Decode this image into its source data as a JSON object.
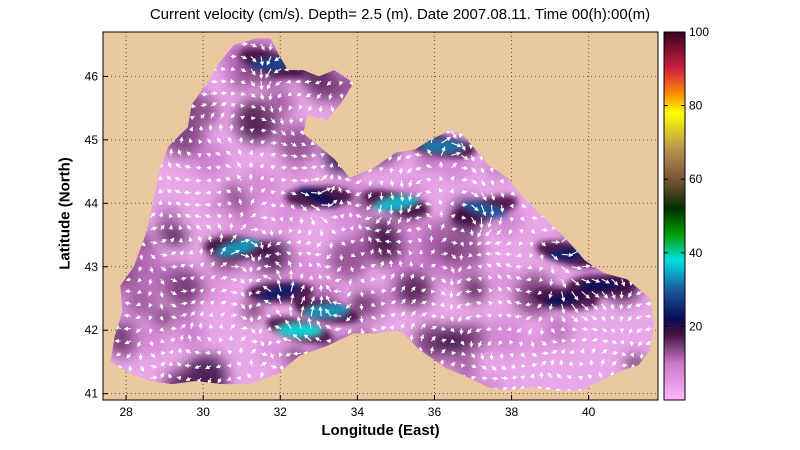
{
  "title": "Current velocity (cm/s). Depth=  2.5 (m). Date 2007.08.11. Time 00(h):00(m)",
  "xlabel": "Longitude (East)",
  "ylabel": "Latitude (North)",
  "colors": {
    "land": "#e9c8a0",
    "sea_low": "#e8a7e8",
    "sea_mid": "#8c5a8c",
    "sea_dark": "#3a0e3a",
    "jet_cyan": "#2fc4d4",
    "jet_blue": "#1a3a8a",
    "arrow": "#ffffff",
    "grid_dot": "#555555"
  },
  "chart_data": {
    "type": "heatmap",
    "quantity": "Current velocity (cm/s)",
    "depth_m": 2.5,
    "date": "2007.08.11",
    "time": "00(h):00(m)",
    "xlim": [
      27.4,
      41.8
    ],
    "ylim": [
      40.9,
      46.7
    ],
    "x_ticks": [
      28,
      30,
      32,
      34,
      36,
      38,
      40
    ],
    "y_ticks": [
      41,
      42,
      43,
      44,
      45,
      46
    ],
    "colorbar": {
      "range": [
        0,
        100
      ],
      "ticks": [
        20,
        40,
        60,
        80,
        100
      ],
      "stops": [
        {
          "v": 0,
          "c": "#ffb6ff"
        },
        {
          "v": 10,
          "c": "#c878c8"
        },
        {
          "v": 18,
          "c": "#401040"
        },
        {
          "v": 22,
          "c": "#0a0a55"
        },
        {
          "v": 30,
          "c": "#1a5aa0"
        },
        {
          "v": 38,
          "c": "#00e0e0"
        },
        {
          "v": 45,
          "c": "#00a000"
        },
        {
          "v": 52,
          "c": "#003000"
        },
        {
          "v": 60,
          "c": "#7a5535"
        },
        {
          "v": 68,
          "c": "#b89050"
        },
        {
          "v": 78,
          "c": "#ffff00"
        },
        {
          "v": 83,
          "c": "#ff9000"
        },
        {
          "v": 90,
          "c": "#d02040"
        },
        {
          "v": 100,
          "c": "#3a0020"
        }
      ]
    },
    "coastline": [
      [
        28.6,
        41.2
      ],
      [
        28.0,
        41.35
      ],
      [
        27.6,
        41.5
      ],
      [
        27.7,
        41.9
      ],
      [
        27.9,
        42.3
      ],
      [
        27.85,
        42.7
      ],
      [
        28.2,
        43.0
      ],
      [
        28.5,
        43.5
      ],
      [
        28.7,
        44.0
      ],
      [
        28.85,
        44.5
      ],
      [
        29.1,
        44.9
      ],
      [
        29.6,
        45.2
      ],
      [
        29.7,
        45.55
      ],
      [
        30.1,
        45.9
      ],
      [
        30.4,
        46.2
      ],
      [
        30.8,
        46.5
      ],
      [
        31.4,
        46.6
      ],
      [
        31.75,
        46.6
      ],
      [
        32.0,
        46.3
      ],
      [
        32.2,
        46.1
      ],
      [
        32.6,
        46.1
      ],
      [
        33.0,
        46.0
      ],
      [
        33.4,
        46.1
      ],
      [
        33.9,
        45.9
      ],
      [
        33.6,
        45.6
      ],
      [
        33.2,
        45.3
      ],
      [
        32.7,
        45.4
      ],
      [
        32.6,
        45.1
      ],
      [
        33.4,
        44.7
      ],
      [
        33.8,
        44.4
      ],
      [
        34.4,
        44.55
      ],
      [
        35.0,
        44.8
      ],
      [
        35.5,
        44.85
      ],
      [
        35.9,
        45.0
      ],
      [
        36.4,
        45.15
      ],
      [
        36.7,
        45.1
      ],
      [
        37.0,
        44.9
      ],
      [
        37.4,
        44.6
      ],
      [
        37.9,
        44.4
      ],
      [
        38.3,
        44.1
      ],
      [
        38.8,
        43.8
      ],
      [
        39.4,
        43.45
      ],
      [
        39.9,
        43.1
      ],
      [
        40.4,
        42.9
      ],
      [
        41.0,
        42.8
      ],
      [
        41.6,
        42.5
      ],
      [
        41.7,
        42.1
      ],
      [
        41.6,
        41.7
      ],
      [
        41.3,
        41.45
      ],
      [
        40.8,
        41.35
      ],
      [
        40.3,
        41.2
      ],
      [
        39.8,
        41.05
      ],
      [
        39.2,
        41.05
      ],
      [
        38.5,
        41.1
      ],
      [
        37.9,
        41.05
      ],
      [
        37.4,
        41.1
      ],
      [
        36.9,
        41.25
      ],
      [
        36.3,
        41.4
      ],
      [
        35.6,
        41.7
      ],
      [
        35.1,
        42.0
      ],
      [
        34.5,
        41.95
      ],
      [
        33.9,
        41.95
      ],
      [
        33.2,
        41.75
      ],
      [
        32.5,
        41.6
      ],
      [
        31.9,
        41.3
      ],
      [
        31.2,
        41.15
      ],
      [
        30.5,
        41.15
      ],
      [
        29.8,
        41.2
      ],
      [
        29.2,
        41.15
      ]
    ],
    "high_velocity_zones": [
      {
        "lon": 32.5,
        "lat": 42.0,
        "value": 38
      },
      {
        "lon": 33.2,
        "lat": 42.3,
        "value": 34
      },
      {
        "lon": 30.9,
        "lat": 43.3,
        "value": 34
      },
      {
        "lon": 35.0,
        "lat": 44.0,
        "value": 36
      },
      {
        "lon": 36.2,
        "lat": 44.9,
        "value": 32
      },
      {
        "lon": 37.3,
        "lat": 43.9,
        "value": 30
      },
      {
        "lon": 31.8,
        "lat": 46.2,
        "value": 28
      },
      {
        "lon": 39.5,
        "lat": 43.2,
        "value": 24
      },
      {
        "lon": 39.4,
        "lat": 42.5,
        "value": 22
      },
      {
        "lon": 32.0,
        "lat": 42.6,
        "value": 24
      },
      {
        "lon": 40.3,
        "lat": 42.7,
        "value": 22
      },
      {
        "lon": 33.0,
        "lat": 44.1,
        "value": 22
      }
    ]
  }
}
